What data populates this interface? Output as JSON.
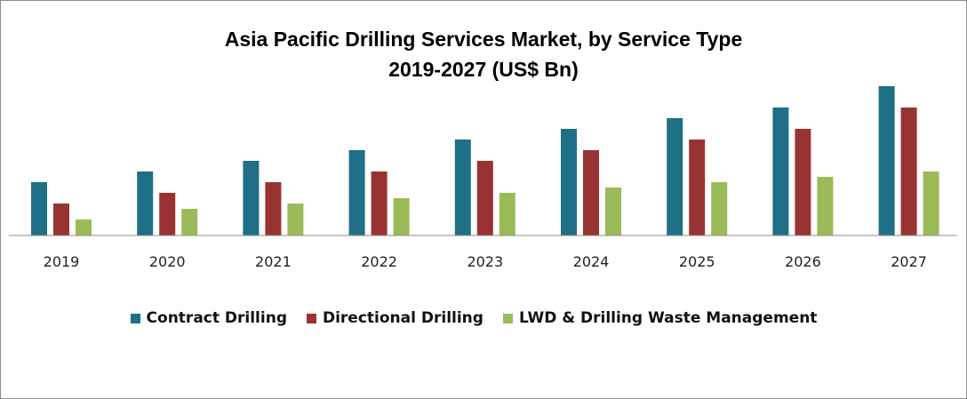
{
  "chart_data": {
    "type": "bar",
    "title": "Asia Pacific Drilling Services Market, by Service Type",
    "subtitle": "2019-2027 (US$ Bn)",
    "xlabel": "",
    "ylabel": "",
    "categories": [
      "2019",
      "2020",
      "2021",
      "2022",
      "2023",
      "2024",
      "2025",
      "2026",
      "2027"
    ],
    "series": [
      {
        "name": "Contract Drilling",
        "color": "#1f6f86",
        "values": [
          10,
          12,
          14,
          16,
          18,
          20,
          22,
          24,
          28
        ]
      },
      {
        "name": "Directional Drilling",
        "color": "#993333",
        "values": [
          6,
          8,
          10,
          12,
          14,
          16,
          18,
          20,
          24
        ]
      },
      {
        "name": "LWD & Drilling Waste Management",
        "color": "#9bbb59",
        "values": [
          3,
          5,
          6,
          7,
          8,
          9,
          10,
          11,
          12
        ]
      }
    ],
    "ylim": [
      0,
      28
    ],
    "grid": false,
    "legend": "bottom"
  }
}
